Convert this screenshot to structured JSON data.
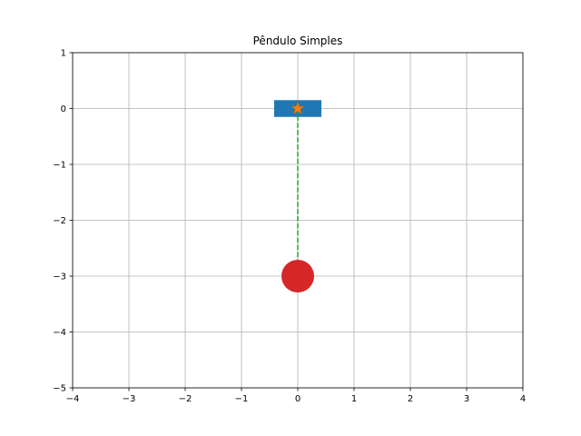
{
  "chart_data": {
    "type": "scatter",
    "title": "Pêndulo Simples",
    "xlabel": "",
    "ylabel": "",
    "xlim": [
      -4,
      4
    ],
    "ylim": [
      -5,
      1
    ],
    "x_ticks": [
      -4,
      -3,
      -2,
      -1,
      0,
      1,
      2,
      3,
      4
    ],
    "y_ticks": [
      -5,
      -4,
      -3,
      -2,
      -1,
      0,
      1
    ],
    "x_tick_labels": [
      "−4",
      "−3",
      "−2",
      "−1",
      "0",
      "1",
      "2",
      "3",
      "4"
    ],
    "y_tick_labels": [
      "−5",
      "−4",
      "−3",
      "−2",
      "−1",
      "0",
      "1"
    ],
    "grid": true,
    "support": {
      "x": [
        -0.42,
        0.42
      ],
      "y": [
        -0.15,
        0.15
      ],
      "color": "#1f77b4"
    },
    "pivot": {
      "x": 0,
      "y": 0,
      "marker": "star",
      "color": "#ff7f0e"
    },
    "rod": {
      "x": [
        0,
        0
      ],
      "y": [
        0,
        -3
      ],
      "style": "dashed",
      "color": "#2ca02c"
    },
    "bob": {
      "x": 0,
      "y": -3,
      "color": "#d62728"
    }
  }
}
